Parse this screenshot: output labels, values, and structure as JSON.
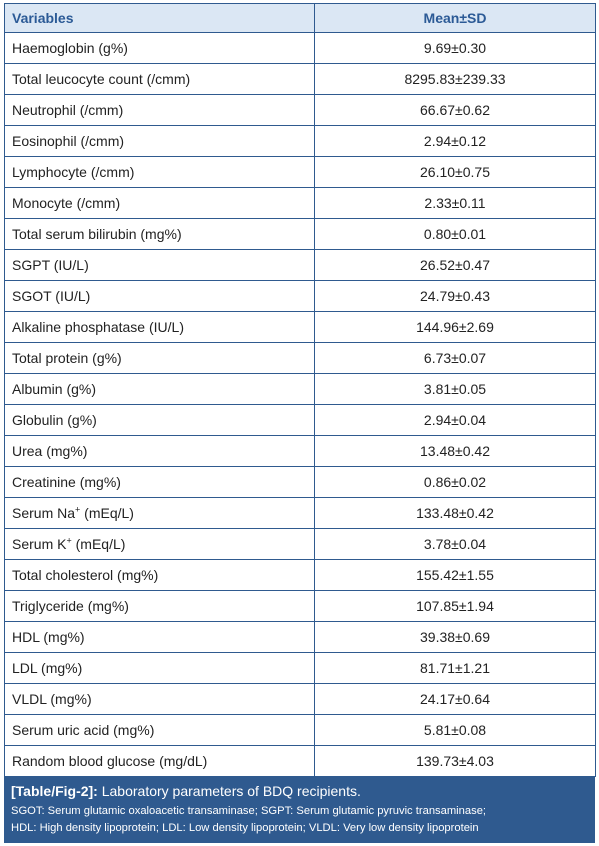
{
  "table": {
    "headers": [
      "Variables",
      "Mean±SD"
    ],
    "rows": [
      {
        "label": "Haemoglobin (g%)",
        "value": "9.69±0.30"
      },
      {
        "label": "Total leucocyte count (/cmm)",
        "value": "8295.83±239.33"
      },
      {
        "label": "Neutrophil (/cmm)",
        "value": "66.67±0.62"
      },
      {
        "label": "Eosinophil (/cmm)",
        "value": "2.94±0.12"
      },
      {
        "label": "Lymphocyte (/cmm)",
        "value": "26.10±0.75"
      },
      {
        "label": "Monocyte  (/cmm)",
        "value": "2.33±0.11"
      },
      {
        "label": "Total serum bilirubin (mg%)",
        "value": "0.80±0.01"
      },
      {
        "label": "SGPT (IU/L)",
        "value": "26.52±0.47"
      },
      {
        "label": "SGOT (IU/L)",
        "value": "24.79±0.43"
      },
      {
        "label": "Alkaline phosphatase (IU/L)",
        "value": "144.96±2.69"
      },
      {
        "label": "Total protein (g%)",
        "value": "6.73±0.07"
      },
      {
        "label": "Albumin (g%)",
        "value": "3.81±0.05"
      },
      {
        "label": "Globulin (g%)",
        "value": "2.94±0.04"
      },
      {
        "label": "Urea (mg%)",
        "value": "13.48±0.42"
      },
      {
        "label": "Creatinine (mg%)",
        "value": "0.86±0.02"
      },
      {
        "label": "Serum Na",
        "sup": "+",
        "label_suffix": " (mEq/L)",
        "value": "133.48±0.42"
      },
      {
        "label": "Serum K",
        "sup": "+",
        "label_suffix": " (mEq/L)",
        "value": "3.78±0.04"
      },
      {
        "label": "Total cholesterol (mg%)",
        "value": "155.42±1.55"
      },
      {
        "label": "Triglyceride (mg%)",
        "value": "107.85±1.94"
      },
      {
        "label": "HDL (mg%)",
        "value": "39.38±0.69"
      },
      {
        "label": "LDL (mg%)",
        "value": "81.71±1.21"
      },
      {
        "label": "VLDL (mg%)",
        "value": "24.17±0.64"
      },
      {
        "label": "Serum uric acid (mg%)",
        "value": "5.81±0.08"
      },
      {
        "label": "Random blood glucose (mg/dL)",
        "value": "139.73±4.03"
      }
    ]
  },
  "caption": {
    "tag": "[Table/Fig-2]:",
    "title": " Laboratory parameters of BDQ recipients.",
    "note_line1": "SGOT: Serum glutamic oxaloacetic transaminase; SGPT: Serum glutamic pyruvic transaminase;",
    "note_line2": "HDL: High density lipoprotein; LDL: Low density lipoprotein; VLDL: Very low density lipoprotein"
  },
  "colors": {
    "header_bg": "#dbe7f4",
    "header_text": "#2b5a96",
    "border": "#2f5a8f",
    "caption_bg": "#2f5a8f"
  }
}
